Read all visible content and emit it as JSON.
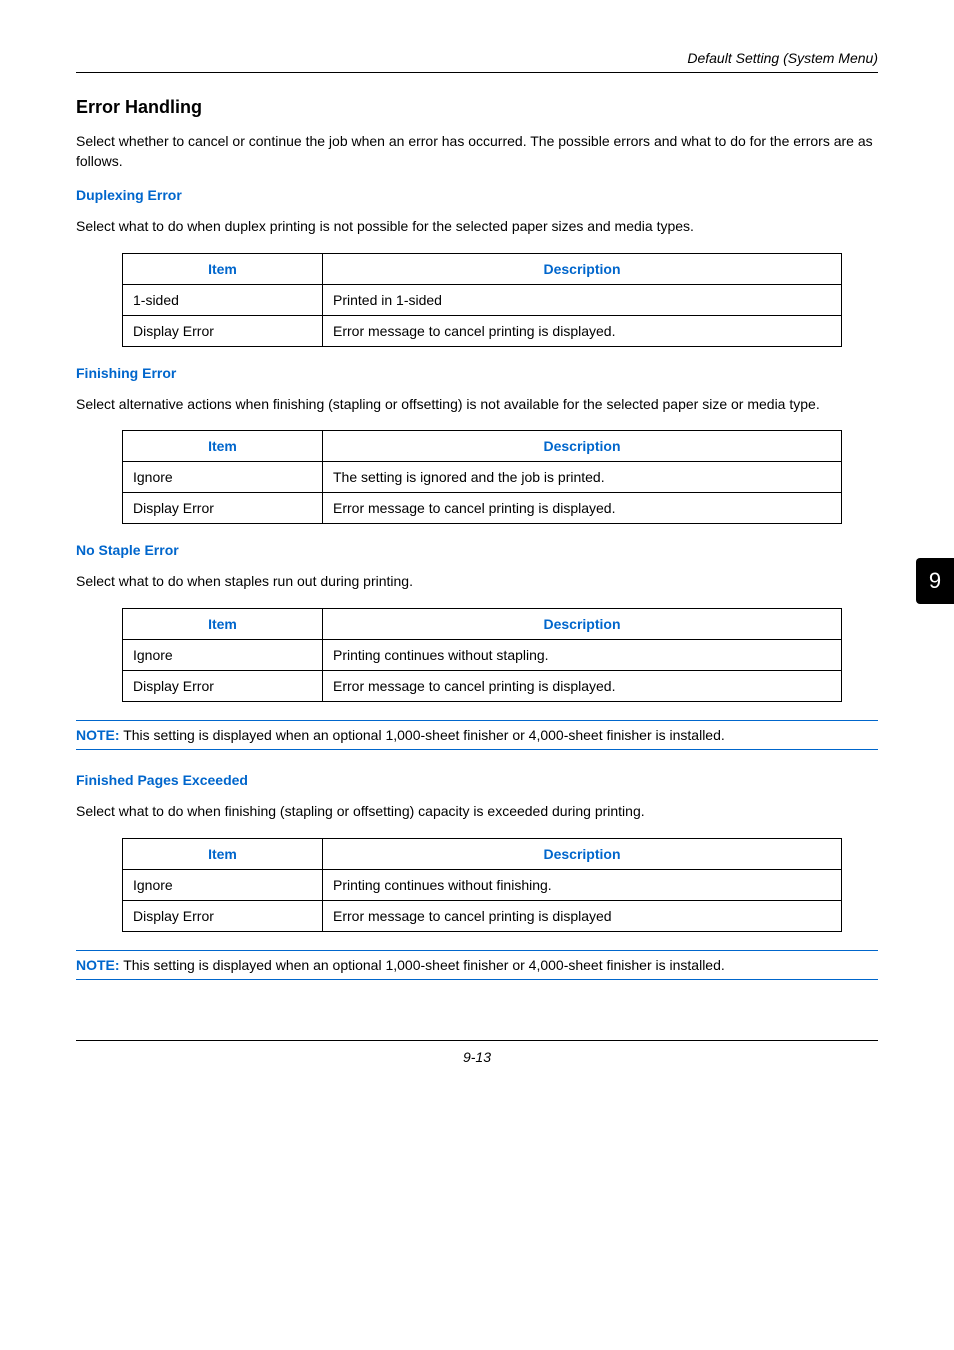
{
  "header": {
    "title": "Default Setting (System Menu)"
  },
  "section_title": "Error Handling",
  "intro": "Select whether to cancel or continue the job when an error has occurred. The possible errors and what to do for the errors are as follows.",
  "duplexing": {
    "heading": "Duplexing Error",
    "desc": "Select what to do when duplex printing is not possible for the selected paper sizes and media types.",
    "table": {
      "headers": {
        "item": "Item",
        "desc": "Description"
      },
      "rows": [
        {
          "item": "1-sided",
          "desc": "Printed in 1-sided"
        },
        {
          "item": "Display Error",
          "desc": "Error message to cancel printing is displayed."
        }
      ]
    }
  },
  "finishing": {
    "heading": "Finishing Error",
    "desc": "Select alternative actions when finishing (stapling or offsetting) is not available for the selected paper size or media type.",
    "table": {
      "headers": {
        "item": "Item",
        "desc": "Description"
      },
      "rows": [
        {
          "item": "Ignore",
          "desc": "The setting is ignored and the job is printed."
        },
        {
          "item": "Display Error",
          "desc": "Error message to cancel printing is displayed."
        }
      ]
    }
  },
  "nostaple": {
    "heading": "No Staple Error",
    "desc": "Select what to do when staples run out during printing.",
    "table": {
      "headers": {
        "item": "Item",
        "desc": "Description"
      },
      "rows": [
        {
          "item": "Ignore",
          "desc": "Printing continues without stapling."
        },
        {
          "item": "Display Error",
          "desc": "Error message to cancel printing is displayed."
        }
      ]
    },
    "note_label": "NOTE:",
    "note": " This setting is displayed when an optional 1,000-sheet finisher or 4,000-sheet finisher is installed."
  },
  "finished_pages": {
    "heading": "Finished Pages Exceeded",
    "desc": "Select what to do when finishing (stapling or offsetting) capacity is exceeded during printing.",
    "table": {
      "headers": {
        "item": "Item",
        "desc": "Description"
      },
      "rows": [
        {
          "item": "Ignore",
          "desc": "Printing continues without finishing."
        },
        {
          "item": "Display Error",
          "desc": "Error message to cancel printing is displayed"
        }
      ]
    },
    "note_label": "NOTE:",
    "note": " This setting is displayed when an optional 1,000-sheet finisher or 4,000-sheet finisher is installed."
  },
  "side_tab": "9",
  "footer": "9-13"
}
